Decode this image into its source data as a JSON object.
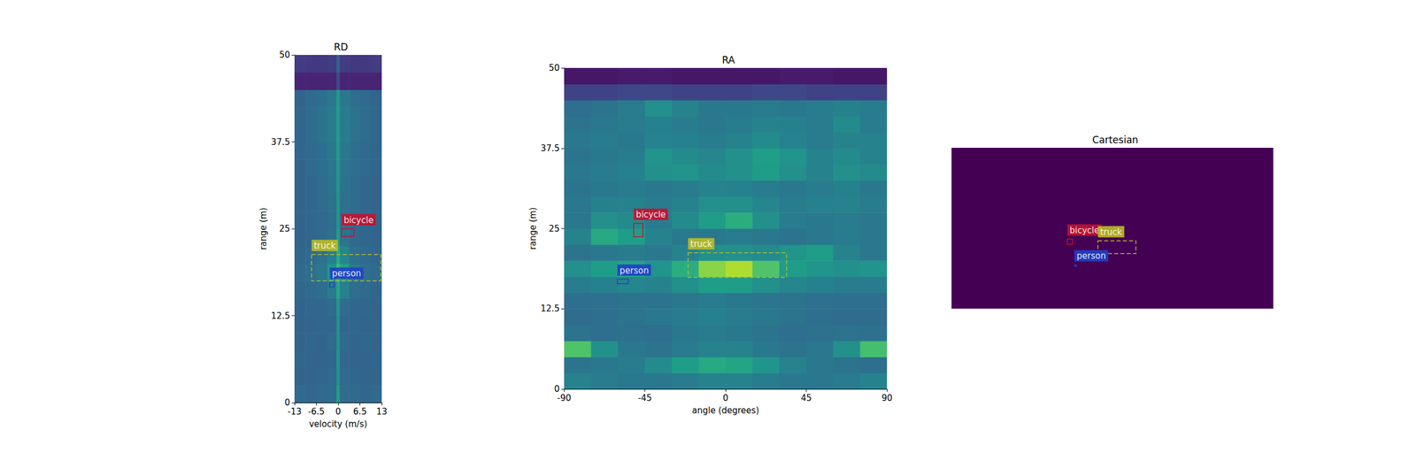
{
  "chart_data": [
    {
      "type": "heatmap",
      "title": "RD",
      "x_label": "velocity (m/s)",
      "y_label": "range (m)",
      "xlim": [
        -13,
        13
      ],
      "ylim": [
        0,
        50
      ],
      "xticks": [
        -13,
        -6.5,
        0,
        6.5,
        13
      ],
      "yticks": [
        0,
        12.5,
        25,
        37.5,
        50
      ],
      "value_range": [
        0,
        1
      ],
      "x_edges": [
        -13,
        -9.75,
        -6.5,
        -3.25,
        -0.5,
        0.5,
        3.25,
        6.5,
        9.75,
        13
      ],
      "y_edges": [
        0,
        2.5,
        5,
        7.5,
        10,
        12.5,
        15,
        17.5,
        20,
        22.5,
        25,
        27.5,
        30,
        32.5,
        35,
        37.5,
        40,
        42.5,
        45,
        47.5,
        50
      ],
      "cells": [
        [
          0.34,
          0.33,
          0.34,
          0.35,
          0.55,
          0.35,
          0.34,
          0.33,
          0.34
        ],
        [
          0.32,
          0.32,
          0.33,
          0.34,
          0.5,
          0.34,
          0.33,
          0.32,
          0.32
        ],
        [
          0.33,
          0.32,
          0.32,
          0.33,
          0.52,
          0.33,
          0.32,
          0.32,
          0.33
        ],
        [
          0.32,
          0.33,
          0.32,
          0.34,
          0.5,
          0.34,
          0.32,
          0.33,
          0.32
        ],
        [
          0.32,
          0.32,
          0.33,
          0.33,
          0.5,
          0.33,
          0.33,
          0.32,
          0.32
        ],
        [
          0.32,
          0.33,
          0.33,
          0.35,
          0.52,
          0.35,
          0.33,
          0.33,
          0.32
        ],
        [
          0.33,
          0.34,
          0.36,
          0.42,
          0.58,
          0.44,
          0.36,
          0.34,
          0.33
        ],
        [
          0.34,
          0.36,
          0.4,
          0.52,
          0.68,
          0.56,
          0.42,
          0.36,
          0.34
        ],
        [
          0.33,
          0.34,
          0.37,
          0.44,
          0.6,
          0.46,
          0.37,
          0.34,
          0.33
        ],
        [
          0.32,
          0.33,
          0.34,
          0.37,
          0.55,
          0.38,
          0.34,
          0.33,
          0.32
        ],
        [
          0.32,
          0.33,
          0.34,
          0.36,
          0.52,
          0.36,
          0.34,
          0.33,
          0.32
        ],
        [
          0.32,
          0.33,
          0.35,
          0.37,
          0.52,
          0.37,
          0.35,
          0.33,
          0.32
        ],
        [
          0.32,
          0.33,
          0.35,
          0.38,
          0.52,
          0.38,
          0.35,
          0.33,
          0.32
        ],
        [
          0.32,
          0.34,
          0.36,
          0.39,
          0.53,
          0.39,
          0.36,
          0.34,
          0.32
        ],
        [
          0.33,
          0.34,
          0.36,
          0.4,
          0.54,
          0.4,
          0.36,
          0.34,
          0.33
        ],
        [
          0.33,
          0.35,
          0.38,
          0.42,
          0.55,
          0.42,
          0.38,
          0.35,
          0.33
        ],
        [
          0.33,
          0.35,
          0.38,
          0.42,
          0.55,
          0.42,
          0.38,
          0.35,
          0.33
        ],
        [
          0.32,
          0.34,
          0.36,
          0.4,
          0.54,
          0.4,
          0.36,
          0.34,
          0.32
        ],
        [
          0.1,
          0.1,
          0.1,
          0.1,
          0.22,
          0.1,
          0.1,
          0.1,
          0.1
        ],
        [
          0.18,
          0.17,
          0.17,
          0.18,
          0.3,
          0.18,
          0.17,
          0.17,
          0.18
        ]
      ],
      "boxes": [
        {
          "label": "bicycle",
          "color": "#c4122f",
          "line_style": "solid",
          "x": [
            1,
            4.7
          ],
          "y": [
            23.9,
            25
          ]
        },
        {
          "label": "truck",
          "color": "#bcbd22",
          "line_style": "dashed",
          "x": [
            -7.9,
            12.7
          ],
          "y": [
            17.5,
            21.3
          ]
        },
        {
          "label": "person",
          "color": "#1f40c8",
          "line_style": "solid",
          "x": [
            -2.5,
            -1.2
          ],
          "y": [
            16.6,
            17.3
          ]
        }
      ]
    },
    {
      "type": "heatmap",
      "title": "RA",
      "x_label": "angle (degrees)",
      "y_label": "range (m)",
      "xlim": [
        -90,
        90
      ],
      "ylim": [
        0,
        50
      ],
      "xticks": [
        -90,
        -45,
        0,
        45,
        90
      ],
      "yticks": [
        0,
        12.5,
        25,
        37.5,
        50
      ],
      "value_range": [
        0,
        1
      ],
      "x_edges": [
        -90,
        -75,
        -60,
        -45,
        -30,
        -15,
        0,
        15,
        30,
        45,
        60,
        75,
        90
      ],
      "y_edges": [
        0,
        2.5,
        5,
        7.5,
        10,
        12.5,
        15,
        17.5,
        20,
        22.5,
        25,
        27.5,
        30,
        32.5,
        35,
        37.5,
        40,
        42.5,
        45,
        47.5,
        50
      ],
      "cells": [
        [
          0.45,
          0.42,
          0.4,
          0.4,
          0.42,
          0.45,
          0.45,
          0.42,
          0.4,
          0.4,
          0.42,
          0.45
        ],
        [
          0.38,
          0.4,
          0.42,
          0.48,
          0.55,
          0.6,
          0.58,
          0.52,
          0.45,
          0.4,
          0.38,
          0.36
        ],
        [
          0.72,
          0.5,
          0.4,
          0.38,
          0.42,
          0.45,
          0.45,
          0.4,
          0.38,
          0.4,
          0.5,
          0.7
        ],
        [
          0.38,
          0.36,
          0.37,
          0.36,
          0.4,
          0.42,
          0.4,
          0.38,
          0.36,
          0.37,
          0.38,
          0.37
        ],
        [
          0.35,
          0.36,
          0.38,
          0.4,
          0.42,
          0.44,
          0.42,
          0.4,
          0.38,
          0.36,
          0.35,
          0.35
        ],
        [
          0.36,
          0.37,
          0.38,
          0.38,
          0.4,
          0.42,
          0.4,
          0.39,
          0.38,
          0.37,
          0.36,
          0.36
        ],
        [
          0.42,
          0.44,
          0.46,
          0.45,
          0.5,
          0.55,
          0.55,
          0.5,
          0.46,
          0.44,
          0.42,
          0.42
        ],
        [
          0.5,
          0.55,
          0.58,
          0.52,
          0.62,
          0.82,
          0.88,
          0.72,
          0.55,
          0.52,
          0.5,
          0.52
        ],
        [
          0.38,
          0.4,
          0.42,
          0.4,
          0.45,
          0.5,
          0.5,
          0.48,
          0.52,
          0.55,
          0.45,
          0.4
        ],
        [
          0.45,
          0.6,
          0.55,
          0.45,
          0.4,
          0.4,
          0.42,
          0.4,
          0.38,
          0.4,
          0.42,
          0.4
        ],
        [
          0.4,
          0.5,
          0.48,
          0.42,
          0.48,
          0.55,
          0.62,
          0.5,
          0.42,
          0.4,
          0.42,
          0.4
        ],
        [
          0.4,
          0.44,
          0.45,
          0.42,
          0.45,
          0.5,
          0.5,
          0.46,
          0.42,
          0.44,
          0.45,
          0.42
        ],
        [
          0.38,
          0.4,
          0.42,
          0.4,
          0.42,
          0.45,
          0.44,
          0.42,
          0.4,
          0.42,
          0.44,
          0.4
        ],
        [
          0.4,
          0.42,
          0.44,
          0.5,
          0.52,
          0.48,
          0.5,
          0.55,
          0.5,
          0.45,
          0.5,
          0.48
        ],
        [
          0.38,
          0.4,
          0.42,
          0.52,
          0.48,
          0.46,
          0.5,
          0.56,
          0.52,
          0.45,
          0.48,
          0.45
        ],
        [
          0.4,
          0.42,
          0.4,
          0.45,
          0.44,
          0.42,
          0.45,
          0.48,
          0.45,
          0.42,
          0.45,
          0.45
        ],
        [
          0.38,
          0.4,
          0.42,
          0.44,
          0.42,
          0.4,
          0.42,
          0.45,
          0.44,
          0.42,
          0.48,
          0.42
        ],
        [
          0.36,
          0.38,
          0.42,
          0.5,
          0.45,
          0.4,
          0.4,
          0.42,
          0.4,
          0.42,
          0.44,
          0.42
        ],
        [
          0.2,
          0.2,
          0.22,
          0.22,
          0.2,
          0.2,
          0.2,
          0.22,
          0.22,
          0.2,
          0.2,
          0.2
        ],
        [
          0.06,
          0.06,
          0.07,
          0.07,
          0.06,
          0.06,
          0.06,
          0.06,
          0.07,
          0.07,
          0.06,
          0.06
        ]
      ],
      "boxes": [
        {
          "label": "bicycle",
          "color": "#c4122f",
          "line_style": "solid",
          "x": [
            -51.2,
            -46.1
          ],
          "y": [
            23.7,
            25.8
          ]
        },
        {
          "label": "truck",
          "color": "#bcbd22",
          "line_style": "dashed",
          "x": [
            -20.9,
            34
          ],
          "y": [
            17.4,
            21.2
          ]
        },
        {
          "label": "person",
          "color": "#1f40c8",
          "line_style": "solid",
          "x": [
            -60.3,
            -54.2
          ],
          "y": [
            16.4,
            17.1
          ]
        }
      ]
    },
    {
      "type": "boxes",
      "title": "Cartesian",
      "color": "#440154",
      "tick_labels": false,
      "xlim": [
        -50,
        50
      ],
      "ylim": [
        0,
        50
      ],
      "boxes": [
        {
          "label": "bicycle",
          "color": "#c4122f",
          "line_style": "solid",
          "x": [
            -14,
            -12.4
          ],
          "y": [
            20,
            21.6
          ]
        },
        {
          "label": "truck",
          "color": "#bcbd22",
          "line_style": "dashed",
          "x": [
            -4.5,
            7.3
          ],
          "y": [
            17.1,
            21.1
          ]
        },
        {
          "label": "person",
          "color": "#1f40c8",
          "line_style": "solid",
          "x": [
            -11.8,
            -11.2
          ],
          "y": [
            13.2,
            13.6
          ]
        }
      ]
    }
  ]
}
